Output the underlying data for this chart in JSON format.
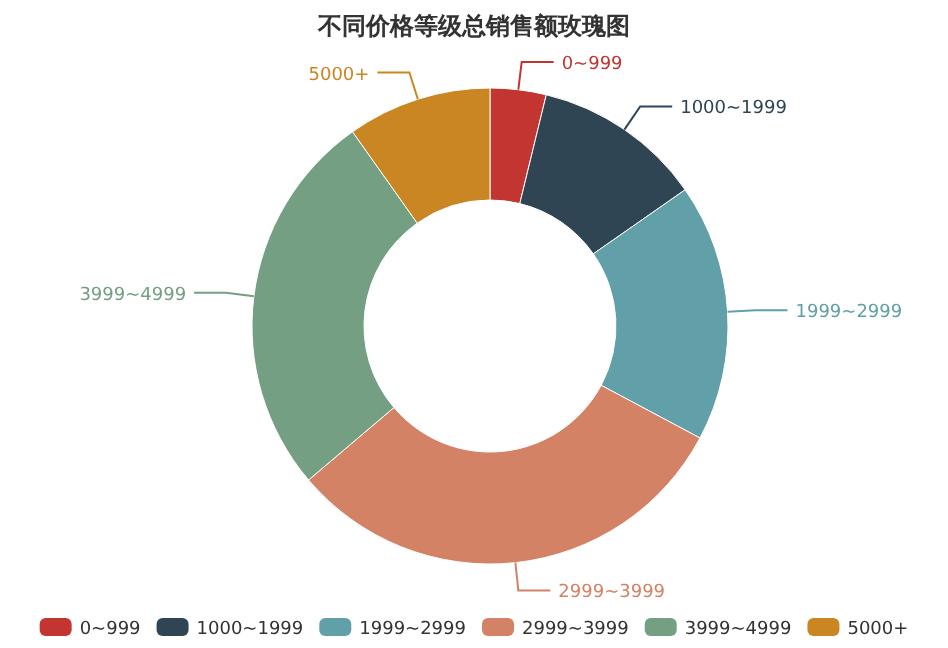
{
  "chart_data": {
    "type": "donut",
    "title": "不同价格等级总销售额玫瑰图",
    "categories": [
      "0~999",
      "1000~1999",
      "1999~2999",
      "2999~3999",
      "3999~4999",
      "5000+"
    ],
    "values": [
      3.8,
      11.5,
      17.5,
      31,
      26.4,
      9.8
    ],
    "colors": [
      "#c23531",
      "#2f4554",
      "#61a0a8",
      "#d48265",
      "#749f83",
      "#ca8622"
    ],
    "legend": "bottom"
  }
}
